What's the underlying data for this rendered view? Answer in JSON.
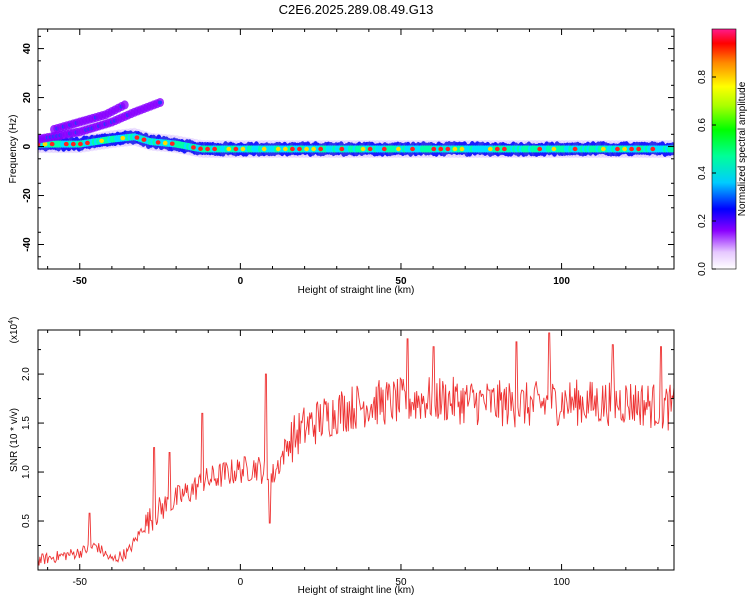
{
  "title": "C2E6.2025.289.08.49.G13",
  "chart_data": [
    {
      "type": "heatmap",
      "xlabel": "Height of straight line (km)",
      "ylabel": "Frequency (Hz)",
      "xlim": [
        -63,
        135
      ],
      "ylim": [
        -50,
        48
      ],
      "xticks": [
        -50,
        0,
        50,
        100
      ],
      "yticks": [
        -40,
        -20,
        0,
        20,
        40
      ],
      "colorbar": {
        "label": "Normalized spectral amplitude",
        "range": [
          0,
          1
        ],
        "ticks": [
          0.0,
          0.2,
          0.4,
          0.6,
          0.8
        ]
      },
      "ridge": [
        {
          "x": -63,
          "y": 1
        },
        {
          "x": -50,
          "y": 1
        },
        {
          "x": -40,
          "y": 3
        },
        {
          "x": -33,
          "y": 4
        },
        {
          "x": -28,
          "y": 2
        },
        {
          "x": -20,
          "y": 1
        },
        {
          "x": -12,
          "y": -1
        },
        {
          "x": 0,
          "y": -1
        },
        {
          "x": 20,
          "y": -1
        },
        {
          "x": 50,
          "y": -1
        },
        {
          "x": 80,
          "y": -1
        },
        {
          "x": 110,
          "y": -1
        },
        {
          "x": 135,
          "y": -1
        }
      ],
      "harmonics": [
        {
          "name": "upper-1",
          "points": [
            {
              "x": -63,
              "y": 3
            },
            {
              "x": -50,
              "y": 6
            },
            {
              "x": -40,
              "y": 10
            },
            {
              "x": -33,
              "y": 14
            },
            {
              "x": -25,
              "y": 18
            }
          ]
        },
        {
          "name": "upper-2",
          "points": [
            {
              "x": -58,
              "y": 7
            },
            {
              "x": -50,
              "y": 10
            },
            {
              "x": -42,
              "y": 13
            },
            {
              "x": -36,
              "y": 17
            }
          ]
        }
      ]
    },
    {
      "type": "line",
      "xlabel": "Height of straight line (km)",
      "ylabel": "SNR (10 * v/v)",
      "y_scale_label": "(x10",
      "y_scale_exp": "4",
      "y_scale_suffix": ")",
      "xlim": [
        -63,
        135
      ],
      "ylim": [
        0,
        2.45
      ],
      "xticks": [
        -50,
        0,
        50,
        100
      ],
      "yticks": [
        0.5,
        1.0,
        1.5,
        2.0
      ],
      "series": [
        {
          "color": "#ee3333",
          "trend": [
            {
              "x": -63,
              "y": 0.1
            },
            {
              "x": -50,
              "y": 0.18
            },
            {
              "x": -45,
              "y": 0.25
            },
            {
              "x": -40,
              "y": 0.1
            },
            {
              "x": -35,
              "y": 0.18
            },
            {
              "x": -30,
              "y": 0.45
            },
            {
              "x": -25,
              "y": 0.62
            },
            {
              "x": -20,
              "y": 0.72
            },
            {
              "x": -15,
              "y": 0.82
            },
            {
              "x": -10,
              "y": 0.92
            },
            {
              "x": -5,
              "y": 0.98
            },
            {
              "x": 0,
              "y": 1.02
            },
            {
              "x": 5,
              "y": 1.05
            },
            {
              "x": 10,
              "y": 0.95
            },
            {
              "x": 15,
              "y": 1.3
            },
            {
              "x": 20,
              "y": 1.45
            },
            {
              "x": 30,
              "y": 1.62
            },
            {
              "x": 40,
              "y": 1.7
            },
            {
              "x": 50,
              "y": 1.72
            },
            {
              "x": 60,
              "y": 1.75
            },
            {
              "x": 70,
              "y": 1.72
            },
            {
              "x": 80,
              "y": 1.7
            },
            {
              "x": 90,
              "y": 1.68
            },
            {
              "x": 100,
              "y": 1.72
            },
            {
              "x": 110,
              "y": 1.7
            },
            {
              "x": 120,
              "y": 1.72
            },
            {
              "x": 135,
              "y": 1.65
            }
          ],
          "peaks": [
            {
              "x": -47,
              "y": 0.58
            },
            {
              "x": -27,
              "y": 1.25
            },
            {
              "x": -22,
              "y": 1.2
            },
            {
              "x": -12,
              "y": 1.6
            },
            {
              "x": 8,
              "y": 2.0
            },
            {
              "x": 9,
              "y": 0.48
            },
            {
              "x": 52,
              "y": 2.36
            },
            {
              "x": 60,
              "y": 2.28
            },
            {
              "x": 86,
              "y": 2.33
            },
            {
              "x": 96,
              "y": 2.42
            },
            {
              "x": 116,
              "y": 2.3
            },
            {
              "x": 131,
              "y": 2.28
            }
          ]
        }
      ]
    }
  ]
}
